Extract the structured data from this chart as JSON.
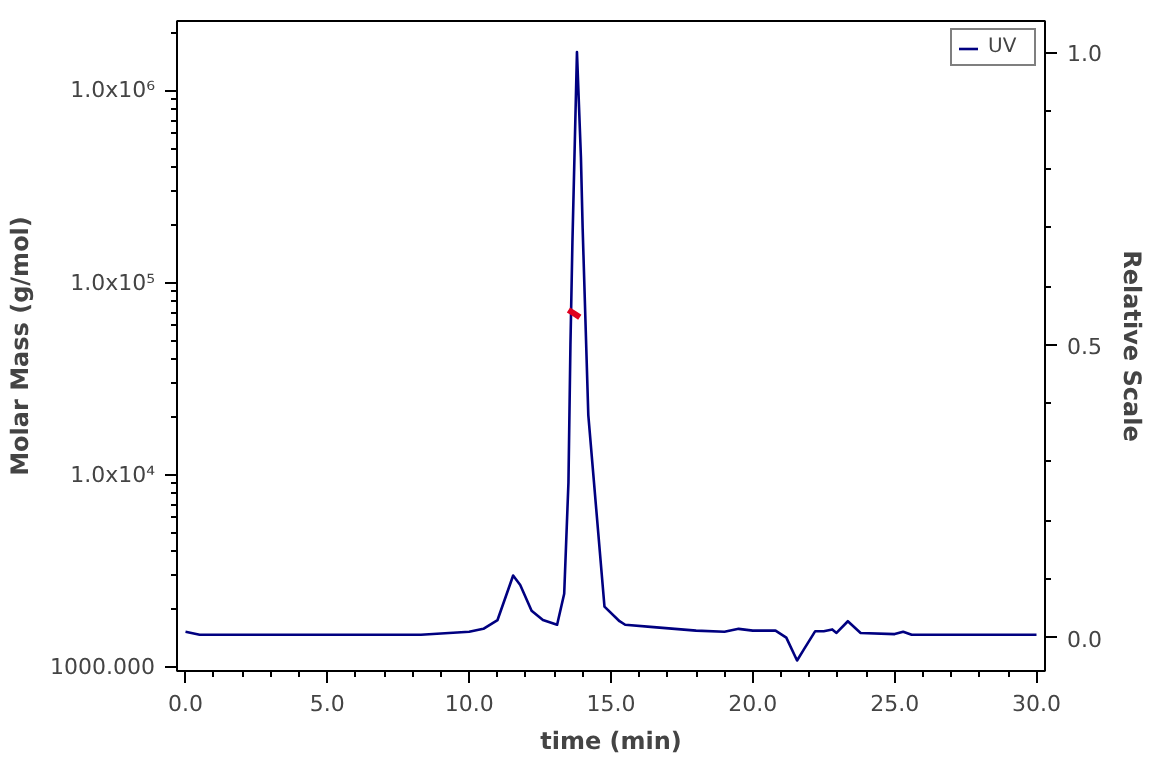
{
  "chart_data": {
    "type": "line",
    "xlabel": "time (min)",
    "ylabel": "Molar Mass (g/mol)",
    "y2label": "Relative Scale",
    "xlim": [
      -0.3,
      30.3
    ],
    "xticks": [
      {
        "value": 0,
        "label": "0.0"
      },
      {
        "value": 5,
        "label": "5.0"
      },
      {
        "value": 10,
        "label": "10.0"
      },
      {
        "value": 15,
        "label": "15.0"
      },
      {
        "value": 20,
        "label": "20.0"
      },
      {
        "value": 25,
        "label": "25.0"
      },
      {
        "value": 30,
        "label": "30.0"
      }
    ],
    "log": "y",
    "ylim": [
      950,
      2300000
    ],
    "yticks": [
      {
        "value": 1000,
        "label": "1000.000"
      },
      {
        "value": 10000,
        "label": "1.0x10⁴"
      },
      {
        "value": 100000,
        "label": "1.0x10⁵"
      },
      {
        "value": 1000000,
        "label": "1.0x10⁶"
      }
    ],
    "y2lim": [
      -0.057,
      1.053
    ],
    "y2ticks": [
      {
        "value": 0,
        "label": "0.0"
      },
      {
        "value": 0.5,
        "label": "0.5"
      },
      {
        "value": 1,
        "label": "1.0"
      }
    ],
    "grid": false,
    "legend": "top right",
    "series": [
      {
        "name": "UV",
        "color": "#000080",
        "axis": "y2",
        "x": [
          0.0,
          0.5,
          8.3,
          10.0,
          10.5,
          11.0,
          11.55,
          11.8,
          12.2,
          12.6,
          13.1,
          13.35,
          13.5,
          13.57,
          13.64,
          13.8,
          13.94,
          14.0,
          14.2,
          14.4,
          14.77,
          15.3,
          15.5,
          16.5,
          18.0,
          19.0,
          19.5,
          20.0,
          20.8,
          21.18,
          21.56,
          21.8,
          22.2,
          22.5,
          22.8,
          22.95,
          23.35,
          23.8,
          25.0,
          25.3,
          25.6,
          30.0
        ],
        "values": [
          0.01,
          0.005,
          0.005,
          0.01,
          0.015,
          0.03,
          0.106,
          0.09,
          0.046,
          0.03,
          0.022,
          0.075,
          0.265,
          0.5,
          0.675,
          1.0,
          0.82,
          0.7,
          0.38,
          0.265,
          0.053,
          0.028,
          0.022,
          0.018,
          0.012,
          0.01,
          0.015,
          0.012,
          0.012,
          0.0,
          -0.039,
          -0.02,
          0.011,
          0.011,
          0.014,
          0.008,
          0.028,
          0.008,
          0.006,
          0.01,
          0.005,
          0.005
        ]
      },
      {
        "color": "#e00020",
        "x": [
          13.5,
          13.7,
          13.9
        ],
        "values": [
          72000,
          69000,
          66000
        ]
      }
    ]
  }
}
